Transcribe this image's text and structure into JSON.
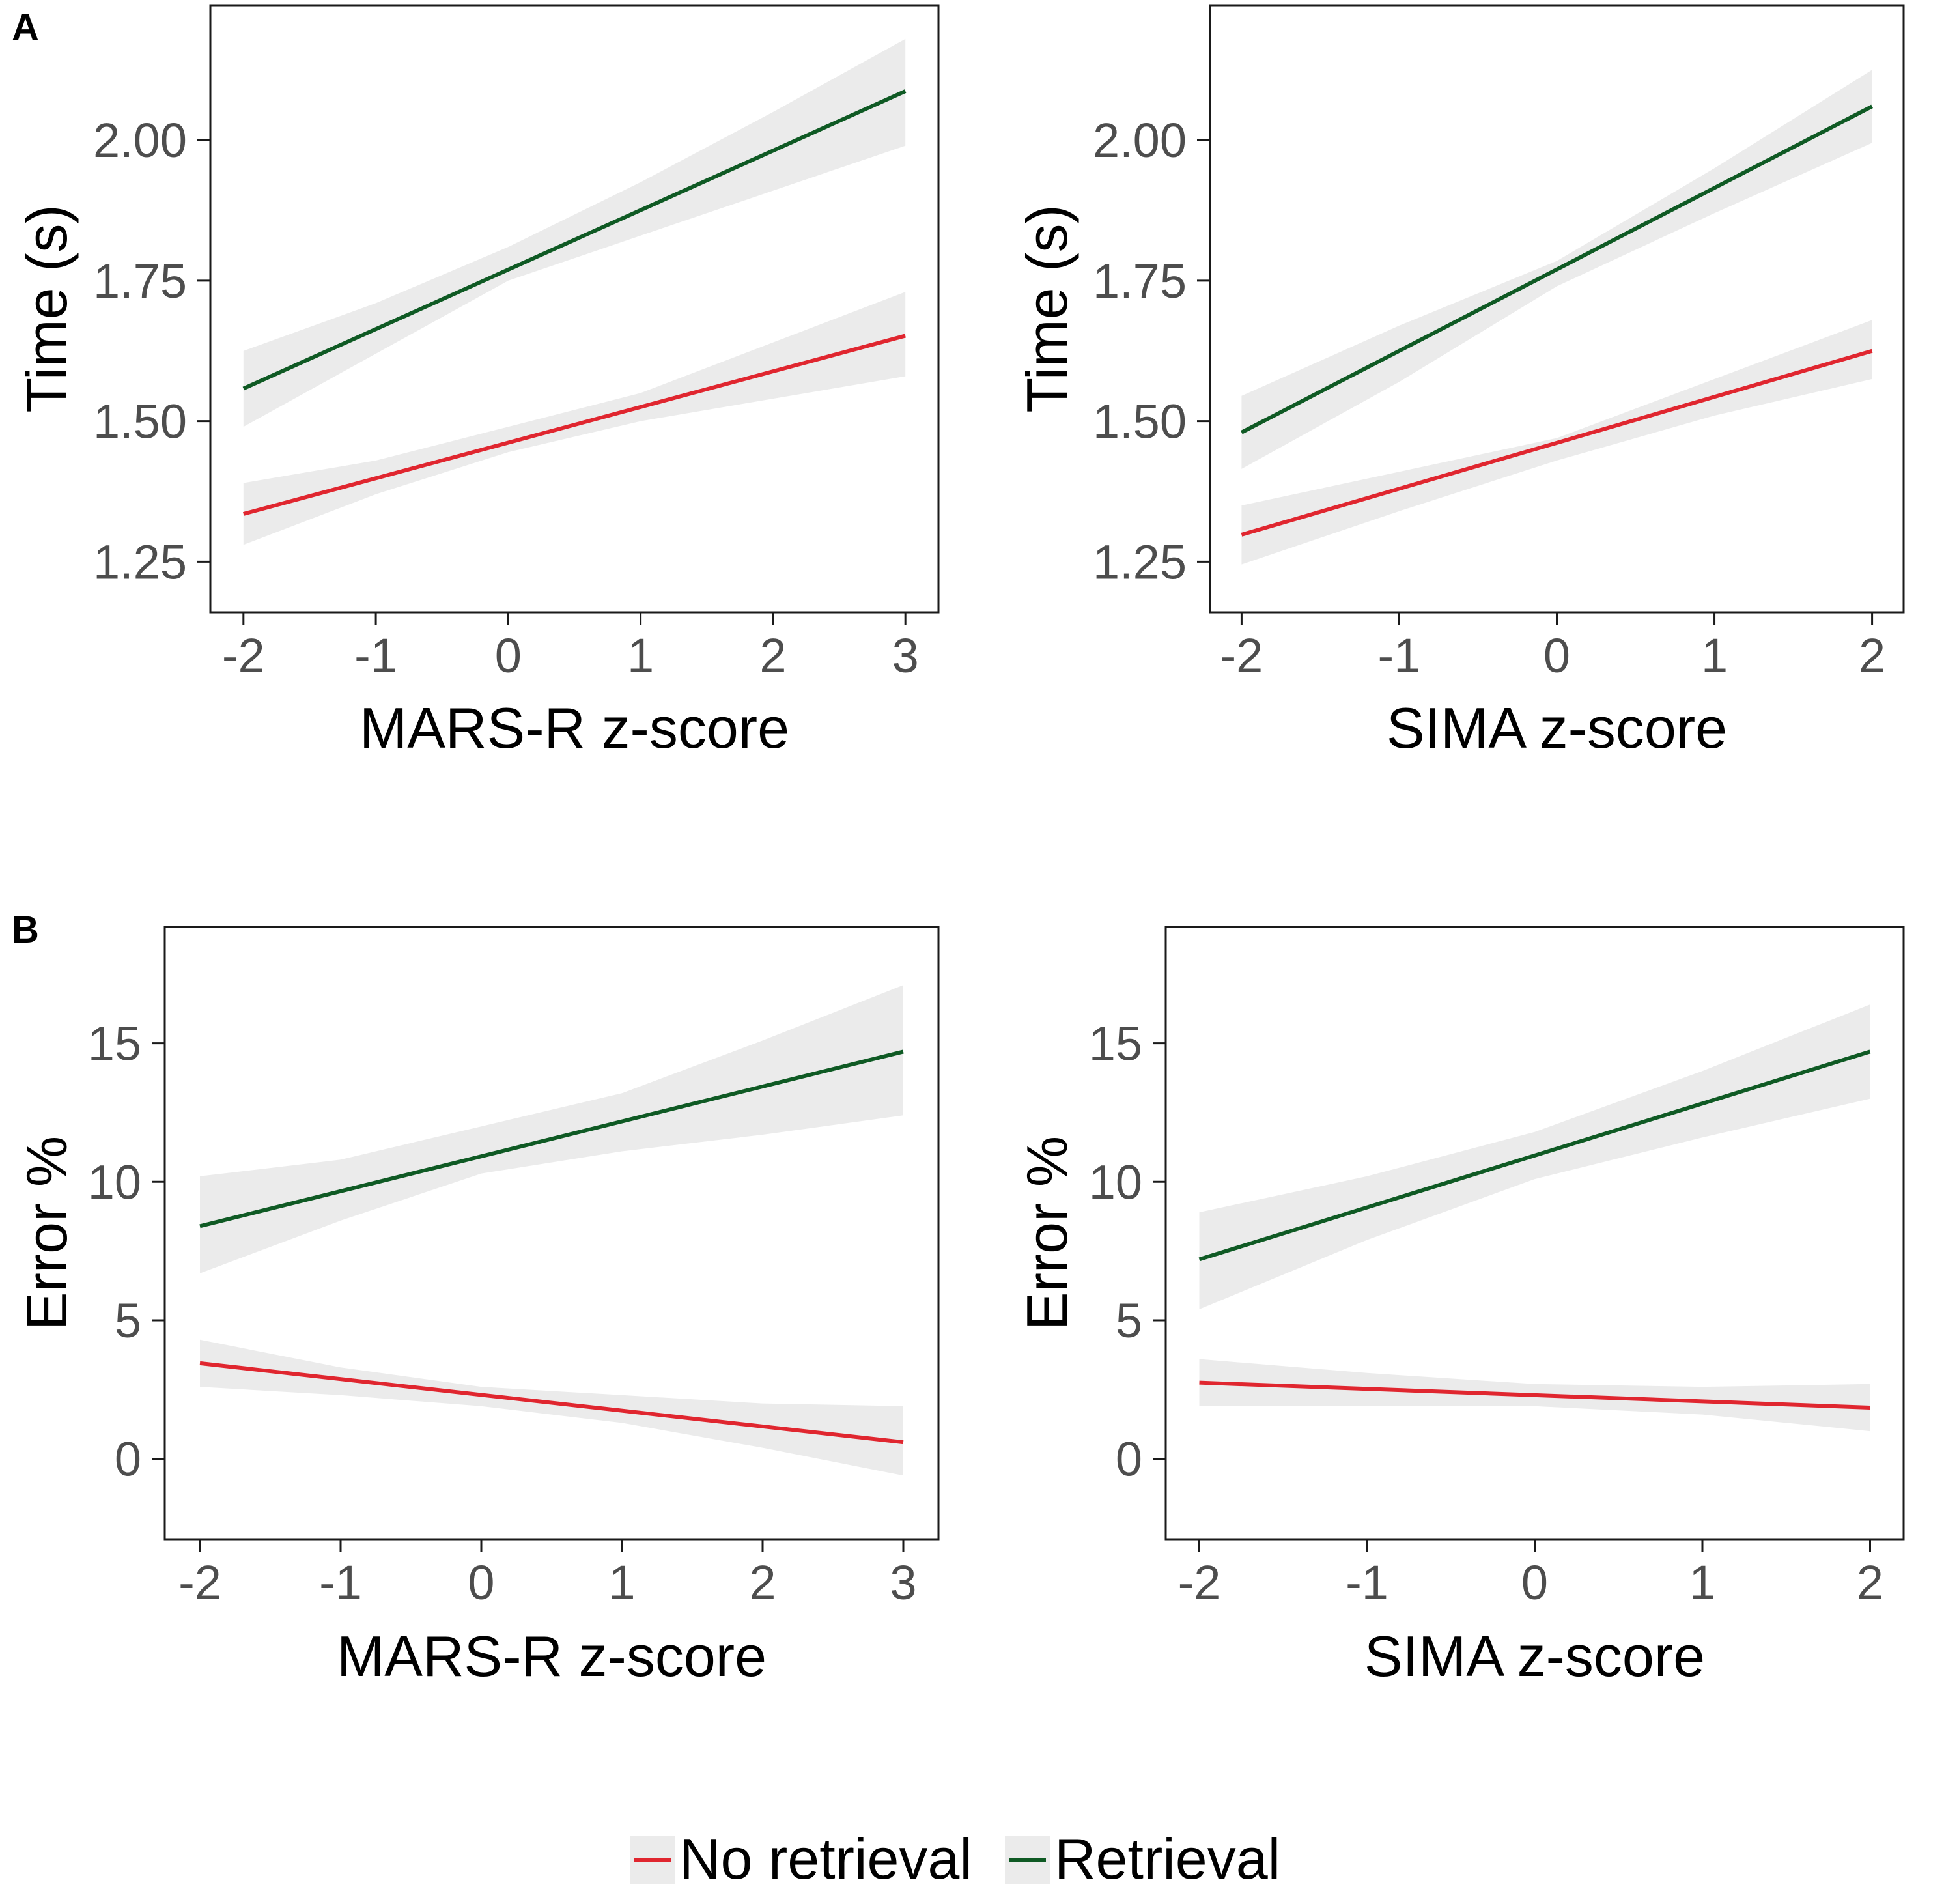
{
  "legend": {
    "items": [
      {
        "label": "No retrieval",
        "color": "#e0262f"
      },
      {
        "label": "Retrieval",
        "color": "#0f5a24"
      }
    ]
  },
  "chart_data": [
    {
      "panel": "A",
      "type": "line",
      "title": "",
      "xlabel": "MARS-R z-score",
      "ylabel": "Time (s)",
      "xlim": [
        -2.25,
        3.25
      ],
      "ylim": [
        1.16,
        2.24
      ],
      "xticks": [
        -2,
        -1,
        0,
        1,
        2,
        3
      ],
      "xtick_labels": [
        "-2",
        "-1",
        "0",
        "1",
        "2",
        "3"
      ],
      "yticks": [
        1.25,
        1.5,
        1.75,
        2.0
      ],
      "ytick_labels": [
        "1.25",
        "1.50",
        "1.75",
        "2.00"
      ],
      "series": [
        {
          "name": "No retrieval",
          "color": "#e0262f",
          "x": [
            -2,
            3
          ],
          "y": [
            1.335,
            1.652
          ],
          "band_x": [
            -2,
            -1,
            0,
            1,
            2,
            3
          ],
          "band_lower": [
            1.28,
            1.37,
            1.445,
            1.5,
            1.54,
            1.58
          ],
          "band_upper": [
            1.39,
            1.43,
            1.49,
            1.55,
            1.64,
            1.73
          ]
        },
        {
          "name": "Retrieval",
          "color": "#0f5a24",
          "x": [
            -2,
            3
          ],
          "y": [
            1.558,
            2.087
          ],
          "band_x": [
            -2,
            -1,
            0,
            1,
            2,
            3
          ],
          "band_lower": [
            1.49,
            1.62,
            1.75,
            1.83,
            1.91,
            1.99
          ],
          "band_upper": [
            1.625,
            1.71,
            1.81,
            1.925,
            2.05,
            2.18
          ]
        }
      ]
    },
    {
      "panel": "",
      "type": "line",
      "title": "",
      "xlabel": "SIMA z-score",
      "ylabel": "Time (s)",
      "xlim": [
        -2.2,
        2.2
      ],
      "ylim": [
        1.16,
        2.24
      ],
      "xticks": [
        -2,
        -1,
        0,
        1,
        2
      ],
      "xtick_labels": [
        "-2",
        "-1",
        "0",
        "1",
        "2"
      ],
      "yticks": [
        1.25,
        1.5,
        1.75,
        2.0
      ],
      "ytick_labels": [
        "1.25",
        "1.50",
        "1.75",
        "2.00"
      ],
      "series": [
        {
          "name": "No retrieval",
          "color": "#e0262f",
          "x": [
            -2,
            2
          ],
          "y": [
            1.298,
            1.625
          ],
          "band_x": [
            -2,
            -1,
            0,
            1,
            2
          ],
          "band_lower": [
            1.245,
            1.34,
            1.43,
            1.51,
            1.575
          ],
          "band_upper": [
            1.35,
            1.41,
            1.47,
            1.575,
            1.68
          ]
        },
        {
          "name": "Retrieval",
          "color": "#0f5a24",
          "x": [
            -2,
            2
          ],
          "y": [
            1.48,
            2.06
          ],
          "band_x": [
            -2,
            -1,
            0,
            1,
            2
          ],
          "band_lower": [
            1.415,
            1.57,
            1.74,
            1.87,
            1.995
          ],
          "band_upper": [
            1.545,
            1.67,
            1.785,
            1.95,
            2.125
          ]
        }
      ]
    },
    {
      "panel": "B",
      "type": "line",
      "title": "",
      "xlabel": "MARS-R z-score",
      "ylabel": "Error %",
      "xlim": [
        -2.25,
        3.25
      ],
      "ylim": [
        -2.9,
        19.2
      ],
      "xticks": [
        -2,
        -1,
        0,
        1,
        2,
        3
      ],
      "xtick_labels": [
        "-2",
        "-1",
        "0",
        "1",
        "2",
        "3"
      ],
      "yticks": [
        0,
        5,
        10,
        15
      ],
      "ytick_labels": [
        "0",
        "5",
        "10",
        "15"
      ],
      "series": [
        {
          "name": "No retrieval",
          "color": "#e0262f",
          "x": [
            -2,
            3
          ],
          "y": [
            3.45,
            0.6
          ],
          "band_x": [
            -2,
            -1,
            0,
            1,
            2,
            3
          ],
          "band_lower": [
            2.6,
            2.3,
            1.9,
            1.3,
            0.4,
            -0.6
          ],
          "band_upper": [
            4.3,
            3.3,
            2.6,
            2.3,
            2.0,
            1.9
          ]
        },
        {
          "name": "Retrieval",
          "color": "#0f5a24",
          "x": [
            -2,
            3
          ],
          "y": [
            8.4,
            14.7
          ],
          "band_x": [
            -2,
            -1,
            0,
            1,
            2,
            3
          ],
          "band_lower": [
            6.7,
            8.6,
            10.3,
            11.1,
            11.7,
            12.4
          ],
          "band_upper": [
            10.2,
            10.8,
            12.0,
            13.2,
            15.1,
            17.1
          ]
        }
      ]
    },
    {
      "panel": "",
      "type": "line",
      "title": "",
      "xlabel": "SIMA z-score",
      "ylabel": "Error %",
      "xlim": [
        -2.2,
        2.2
      ],
      "ylim": [
        -2.9,
        19.2
      ],
      "xticks": [
        -2,
        -1,
        0,
        1,
        2
      ],
      "xtick_labels": [
        "-2",
        "-1",
        "0",
        "1",
        "2"
      ],
      "yticks": [
        0,
        5,
        10,
        15
      ],
      "ytick_labels": [
        "0",
        "5",
        "10",
        "15"
      ],
      "series": [
        {
          "name": "No retrieval",
          "color": "#e0262f",
          "x": [
            -2,
            2
          ],
          "y": [
            2.75,
            1.85
          ],
          "band_x": [
            -2,
            -1,
            0,
            1,
            2
          ],
          "band_lower": [
            1.9,
            1.9,
            1.9,
            1.6,
            1.0
          ],
          "band_upper": [
            3.6,
            3.1,
            2.7,
            2.6,
            2.7
          ]
        },
        {
          "name": "Retrieval",
          "color": "#0f5a24",
          "x": [
            -2,
            2
          ],
          "y": [
            7.2,
            14.7
          ],
          "band_x": [
            -2,
            -1,
            0,
            1,
            2
          ],
          "band_lower": [
            5.4,
            7.9,
            10.1,
            11.6,
            13.0
          ],
          "band_upper": [
            8.9,
            10.2,
            11.8,
            14.0,
            16.4
          ]
        }
      ]
    }
  ]
}
